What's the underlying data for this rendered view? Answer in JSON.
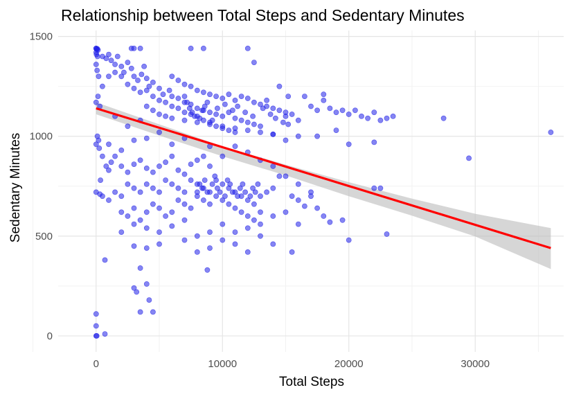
{
  "chart_data": {
    "type": "scatter",
    "title": "Relationship between Total Steps and Sedentary Minutes",
    "xlabel": "Total Steps",
    "ylabel": "Sedentary Minutes",
    "xlim": [
      -3000,
      37000
    ],
    "ylim": [
      -80,
      1530
    ],
    "x_ticks": [
      0,
      10000,
      20000,
      30000
    ],
    "y_ticks": [
      0,
      500,
      1000,
      1500
    ],
    "grid": true,
    "point_color": "#2020e8",
    "trend_color": "#ff0000",
    "band_color": "#bdbdbd",
    "trend": {
      "x": [
        0,
        35980
      ],
      "y": [
        1140,
        440
      ]
    },
    "confidence_band": {
      "x": [
        0,
        5000,
        10000,
        15000,
        20000,
        25000,
        30000,
        35980
      ],
      "upper": [
        1170,
        1060,
        950,
        858,
        770,
        688,
        612,
        540
      ],
      "lower": [
        1110,
        1004,
        900,
        804,
        700,
        602,
        498,
        335
      ]
    },
    "points": [
      [
        0,
        1440
      ],
      [
        0,
        1440
      ],
      [
        50,
        1435
      ],
      [
        100,
        1438
      ],
      [
        150,
        1432
      ],
      [
        0,
        1420
      ],
      [
        30,
        1410
      ],
      [
        120,
        1400
      ],
      [
        0,
        1360
      ],
      [
        80,
        1330
      ],
      [
        200,
        1300
      ],
      [
        150,
        1200
      ],
      [
        0,
        1170
      ],
      [
        300,
        1150
      ],
      [
        100,
        1000
      ],
      [
        200,
        980
      ],
      [
        0,
        960
      ],
      [
        250,
        940
      ],
      [
        0,
        720
      ],
      [
        300,
        710
      ],
      [
        350,
        780
      ],
      [
        700,
        380
      ],
      [
        0,
        110
      ],
      [
        0,
        50
      ],
      [
        50,
        0
      ],
      [
        0,
        0
      ],
      [
        700,
        10
      ],
      [
        500,
        1400
      ],
      [
        800,
        1390
      ],
      [
        1000,
        1410
      ],
      [
        1200,
        1380
      ],
      [
        1500,
        1360
      ],
      [
        1700,
        1400
      ],
      [
        2000,
        1350
      ],
      [
        2200,
        1320
      ],
      [
        2500,
        1370
      ],
      [
        2800,
        1340
      ],
      [
        3000,
        1300
      ],
      [
        3300,
        1280
      ],
      [
        3600,
        1310
      ],
      [
        4000,
        1290
      ],
      [
        4200,
        1250
      ],
      [
        4500,
        1270
      ],
      [
        5000,
        1240
      ],
      [
        5300,
        1210
      ],
      [
        5800,
        1230
      ],
      [
        6000,
        1200
      ],
      [
        6500,
        1190
      ],
      [
        7000,
        1170
      ],
      [
        7500,
        1160
      ],
      [
        8000,
        1140
      ],
      [
        8500,
        1130
      ],
      [
        9000,
        1120
      ],
      [
        9500,
        1110
      ],
      [
        10000,
        1100
      ],
      [
        10500,
        1120
      ],
      [
        11000,
        1090
      ],
      [
        11500,
        1080
      ],
      [
        12000,
        1070
      ],
      [
        12500,
        1060
      ],
      [
        13000,
        1050
      ],
      [
        1500,
        1320
      ],
      [
        2000,
        1300
      ],
      [
        2500,
        1260
      ],
      [
        3000,
        1240
      ],
      [
        3500,
        1220
      ],
      [
        4000,
        1230
      ],
      [
        4500,
        1200
      ],
      [
        5000,
        1180
      ],
      [
        5500,
        1170
      ],
      [
        6000,
        1150
      ],
      [
        6500,
        1140
      ],
      [
        7000,
        1120
      ],
      [
        7500,
        1110
      ],
      [
        8000,
        1100
      ],
      [
        8500,
        1080
      ],
      [
        9000,
        1070
      ],
      [
        9500,
        1050
      ],
      [
        10000,
        1040
      ],
      [
        10500,
        1030
      ],
      [
        11000,
        1020
      ],
      [
        3000,
        1440
      ],
      [
        3500,
        1440
      ],
      [
        7500,
        1440
      ],
      [
        8500,
        1440
      ],
      [
        12000,
        1440
      ],
      [
        12500,
        1370
      ],
      [
        2800,
        1440
      ],
      [
        3800,
        1350
      ],
      [
        6000,
        1300
      ],
      [
        6500,
        1280
      ],
      [
        7000,
        1260
      ],
      [
        7500,
        1250
      ],
      [
        8000,
        1230
      ],
      [
        8500,
        1220
      ],
      [
        9000,
        1210
      ],
      [
        9500,
        1200
      ],
      [
        10000,
        1190
      ],
      [
        10500,
        1210
      ],
      [
        11000,
        1180
      ],
      [
        11500,
        1200
      ],
      [
        12000,
        1190
      ],
      [
        12500,
        1170
      ],
      [
        13000,
        1160
      ],
      [
        13500,
        1150
      ],
      [
        14000,
        1140
      ],
      [
        14500,
        1130
      ],
      [
        15000,
        1120
      ],
      [
        4000,
        1150
      ],
      [
        4500,
        1130
      ],
      [
        5000,
        1110
      ],
      [
        5500,
        1100
      ],
      [
        6000,
        1090
      ],
      [
        7000,
        1080
      ],
      [
        8000,
        1070
      ],
      [
        9000,
        1060
      ],
      [
        10000,
        1050
      ],
      [
        11000,
        1040
      ],
      [
        12000,
        1030
      ],
      [
        13000,
        1020
      ],
      [
        14000,
        1010
      ],
      [
        7000,
        1200
      ],
      [
        7200,
        1170
      ],
      [
        7400,
        1140
      ],
      [
        7600,
        1120
      ],
      [
        7800,
        1100
      ],
      [
        8200,
        1090
      ],
      [
        8400,
        1130
      ],
      [
        8600,
        1150
      ],
      [
        8800,
        1170
      ],
      [
        9200,
        1080
      ],
      [
        9600,
        1140
      ],
      [
        10200,
        1160
      ],
      [
        10800,
        1130
      ],
      [
        11200,
        1150
      ],
      [
        11800,
        1120
      ],
      [
        12400,
        1100
      ],
      [
        13200,
        1140
      ],
      [
        13800,
        1110
      ],
      [
        14200,
        1090
      ],
      [
        14800,
        1070
      ],
      [
        15200,
        1060
      ],
      [
        15000,
        1100
      ],
      [
        15500,
        1110
      ],
      [
        16000,
        1080
      ],
      [
        16500,
        1200
      ],
      [
        17000,
        1150
      ],
      [
        17500,
        1130
      ],
      [
        18000,
        1180
      ],
      [
        18500,
        1140
      ],
      [
        19000,
        1120
      ],
      [
        19500,
        1130
      ],
      [
        20000,
        1110
      ],
      [
        20500,
        1130
      ],
      [
        21000,
        1100
      ],
      [
        21500,
        1090
      ],
      [
        22000,
        1120
      ],
      [
        22500,
        1080
      ],
      [
        23000,
        1090
      ],
      [
        23500,
        1100
      ],
      [
        22000,
        970
      ],
      [
        20000,
        960
      ],
      [
        19000,
        1030
      ],
      [
        18000,
        1210
      ],
      [
        27500,
        1090
      ],
      [
        35980,
        1020
      ],
      [
        16000,
        1000
      ],
      [
        15000,
        980
      ],
      [
        14000,
        1010
      ],
      [
        17500,
        1000
      ],
      [
        13500,
        1180
      ],
      [
        14500,
        1250
      ],
      [
        15200,
        1200
      ],
      [
        500,
        900
      ],
      [
        800,
        850
      ],
      [
        1000,
        830
      ],
      [
        1200,
        870
      ],
      [
        1500,
        900
      ],
      [
        2000,
        850
      ],
      [
        2500,
        820
      ],
      [
        3000,
        860
      ],
      [
        3500,
        880
      ],
      [
        4000,
        840
      ],
      [
        4500,
        820
      ],
      [
        5000,
        850
      ],
      [
        5500,
        870
      ],
      [
        6000,
        900
      ],
      [
        6500,
        830
      ],
      [
        7000,
        810
      ],
      [
        7500,
        860
      ],
      [
        8000,
        880
      ],
      [
        8500,
        900
      ],
      [
        9000,
        850
      ],
      [
        500,
        700
      ],
      [
        1000,
        680
      ],
      [
        1500,
        720
      ],
      [
        2000,
        700
      ],
      [
        2500,
        760
      ],
      [
        3000,
        740
      ],
      [
        3500,
        720
      ],
      [
        4000,
        760
      ],
      [
        4500,
        740
      ],
      [
        5000,
        720
      ],
      [
        5500,
        780
      ],
      [
        6000,
        760
      ],
      [
        6500,
        740
      ],
      [
        7000,
        720
      ],
      [
        7500,
        780
      ],
      [
        8000,
        760
      ],
      [
        8500,
        740
      ],
      [
        9000,
        720
      ],
      [
        9500,
        780
      ],
      [
        10000,
        760
      ],
      [
        10500,
        740
      ],
      [
        11000,
        720
      ],
      [
        11500,
        700
      ],
      [
        12000,
        680
      ],
      [
        12500,
        660
      ],
      [
        13000,
        700
      ],
      [
        13500,
        720
      ],
      [
        14000,
        740
      ],
      [
        2000,
        620
      ],
      [
        2500,
        600
      ],
      [
        3000,
        640
      ],
      [
        3500,
        580
      ],
      [
        4000,
        620
      ],
      [
        4500,
        660
      ],
      [
        5000,
        640
      ],
      [
        5500,
        600
      ],
      [
        6000,
        620
      ],
      [
        6500,
        680
      ],
      [
        7000,
        660
      ],
      [
        7500,
        640
      ],
      [
        8000,
        700
      ],
      [
        8500,
        680
      ],
      [
        9000,
        660
      ],
      [
        9500,
        700
      ],
      [
        10000,
        680
      ],
      [
        10500,
        660
      ],
      [
        11000,
        640
      ],
      [
        11500,
        620
      ],
      [
        12000,
        600
      ],
      [
        12500,
        580
      ],
      [
        13000,
        620
      ],
      [
        8000,
        720
      ],
      [
        8200,
        760
      ],
      [
        8400,
        740
      ],
      [
        8600,
        780
      ],
      [
        8800,
        720
      ],
      [
        9200,
        760
      ],
      [
        9400,
        800
      ],
      [
        9600,
        740
      ],
      [
        9800,
        720
      ],
      [
        10200,
        700
      ],
      [
        10400,
        780
      ],
      [
        10600,
        760
      ],
      [
        10800,
        720
      ],
      [
        11200,
        700
      ],
      [
        11400,
        740
      ],
      [
        11600,
        760
      ],
      [
        11800,
        720
      ],
      [
        12200,
        700
      ],
      [
        12400,
        740
      ],
      [
        12600,
        720
      ],
      [
        12800,
        760
      ],
      [
        2000,
        520
      ],
      [
        3000,
        560
      ],
      [
        4000,
        540
      ],
      [
        5000,
        520
      ],
      [
        6000,
        550
      ],
      [
        7000,
        580
      ],
      [
        8000,
        500
      ],
      [
        9000,
        520
      ],
      [
        10000,
        560
      ],
      [
        11000,
        520
      ],
      [
        12000,
        540
      ],
      [
        13000,
        560
      ],
      [
        14000,
        600
      ],
      [
        15000,
        620
      ],
      [
        16000,
        680
      ],
      [
        17000,
        700
      ],
      [
        17500,
        640
      ],
      [
        18000,
        600
      ],
      [
        18500,
        570
      ],
      [
        3000,
        450
      ],
      [
        4000,
        440
      ],
      [
        5000,
        460
      ],
      [
        7000,
        480
      ],
      [
        8000,
        420
      ],
      [
        9000,
        440
      ],
      [
        10000,
        480
      ],
      [
        11000,
        460
      ],
      [
        12000,
        420
      ],
      [
        13000,
        500
      ],
      [
        14000,
        460
      ],
      [
        15500,
        420
      ],
      [
        20000,
        480
      ],
      [
        23000,
        510
      ],
      [
        19500,
        580
      ],
      [
        16000,
        560
      ],
      [
        3000,
        240
      ],
      [
        3500,
        340
      ],
      [
        4000,
        260
      ],
      [
        3500,
        120
      ],
      [
        4500,
        120
      ],
      [
        3200,
        220
      ],
      [
        4200,
        180
      ],
      [
        8800,
        330
      ],
      [
        15000,
        800
      ],
      [
        16000,
        760
      ],
      [
        17000,
        720
      ],
      [
        16500,
        650
      ],
      [
        15500,
        700
      ],
      [
        14500,
        800
      ],
      [
        22000,
        740
      ],
      [
        22500,
        740
      ],
      [
        29500,
        890
      ],
      [
        9000,
        950
      ],
      [
        10000,
        900
      ],
      [
        11000,
        950
      ],
      [
        12000,
        920
      ],
      [
        13000,
        880
      ],
      [
        14000,
        850
      ],
      [
        6000,
        960
      ],
      [
        7000,
        990
      ],
      [
        5000,
        1020
      ],
      [
        4000,
        990
      ],
      [
        3000,
        980
      ],
      [
        2000,
        930
      ],
      [
        1000,
        960
      ],
      [
        1500,
        1100
      ],
      [
        2500,
        1050
      ],
      [
        3500,
        1080
      ],
      [
        500,
        1250
      ],
      [
        1000,
        1300
      ]
    ]
  }
}
